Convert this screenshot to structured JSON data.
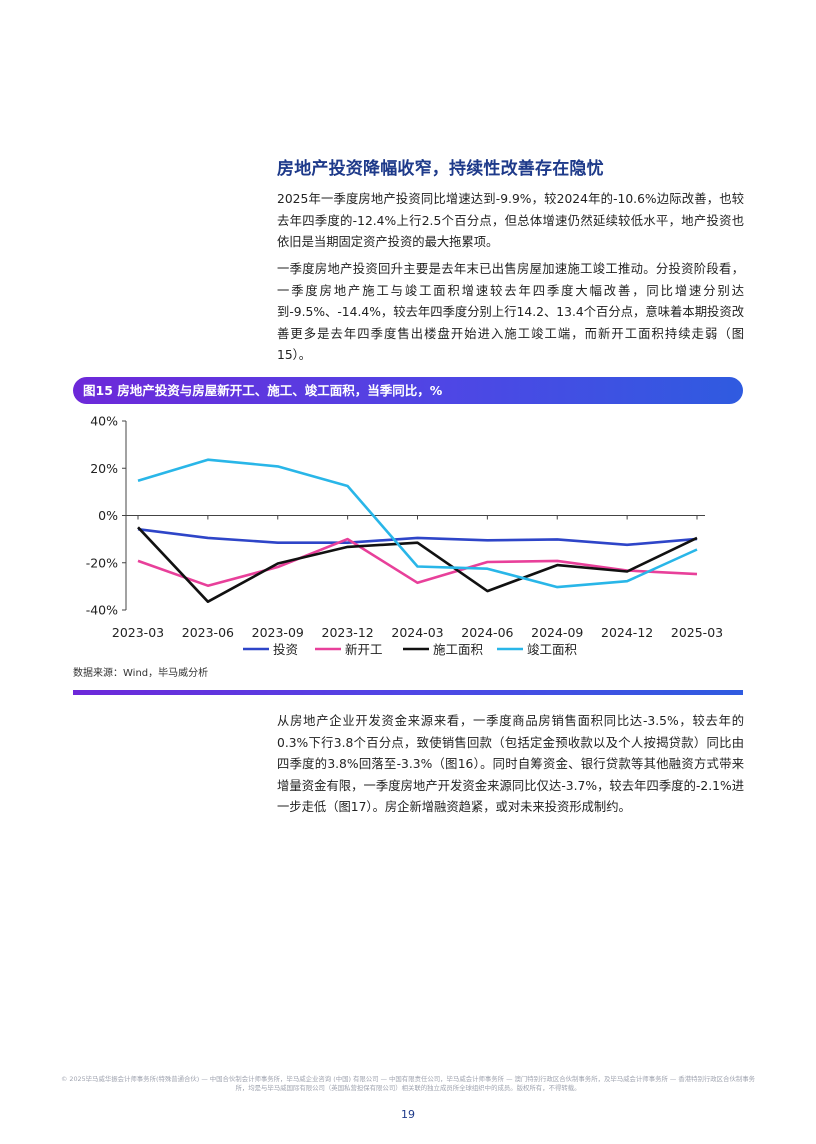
{
  "section": {
    "title": "房地产投资降幅收窄，持续性改善存在隐忧",
    "paragraphs": [
      "2025年一季度房地产投资同比增速达到-9.9%，较2024年的-10.6%边际改善，也较去年四季度的-12.4%上行2.5个百分点，但总体增速仍然延续较低水平，地产投资也依旧是当期固定资产投资的最大拖累项。",
      "一季度房地产投资回升主要是去年末已出售房屋加速施工竣工推动。分投资阶段看，一季度房地产施工与竣工面积增速较去年四季度大幅改善，同比增速分别达到-9.5%、-14.4%，较去年四季度分别上行14.2、13.4个百分点，意味着本期投资改善更多是去年四季度售出楼盘开始进入施工竣工端，而新开工面积持续走弱（图 15）。",
      "从房地产企业开发资金来源来看，一季度商品房销售面积同比达-3.5%，较去年的0.3%下行3.8个百分点，致使销售回款（包括定金预收款以及个人按揭贷款）同比由四季度的3.8%回落至-3.3%（图16）。同时自筹资金、银行贷款等其他融资方式带来增量资金有限，一季度房地产开发资金来源同比仅达-3.7%，较去年四季度的-2.1%进一步走低（图17）。房企新增融资趋紧，或对未来投资形成制约。"
    ]
  },
  "figure": {
    "title": "图15 房地产投资与房屋新开工、施工、竣工面积，当季同比，%",
    "source": "数据来源：Wind，毕马威分析"
  },
  "chart_data": {
    "type": "line",
    "title": "图15 房地产投资与房屋新开工、施工、竣工面积，当季同比，%",
    "xlabel": "",
    "ylabel": "",
    "ylim": [
      -40,
      40
    ],
    "yticks": [
      "40%",
      "20%",
      "0%",
      "-20%",
      "-40%"
    ],
    "ytick_values": [
      40,
      20,
      0,
      -20,
      -40
    ],
    "categories": [
      "2023-03",
      "2023-06",
      "2023-09",
      "2023-12",
      "2024-03",
      "2024-06",
      "2024-09",
      "2024-12",
      "2025-03"
    ],
    "grid": false,
    "legend_position": "bottom",
    "series": [
      {
        "name": "投资",
        "color": "#2e45c8",
        "values": [
          -5.8,
          -9.5,
          -11.5,
          -11.5,
          -9.5,
          -10.5,
          -10.1,
          -12.4,
          -9.9
        ]
      },
      {
        "name": "新开工",
        "color": "#e8409a",
        "values": [
          -19.2,
          -29.7,
          -21.8,
          -10.0,
          -28.5,
          -19.7,
          -19.2,
          -23.3,
          -24.8
        ]
      },
      {
        "name": "施工面积",
        "color": "#111111",
        "values": [
          -5.0,
          -36.5,
          -20.3,
          -13.3,
          -11.5,
          -32.0,
          -21.0,
          -23.7,
          -9.5
        ]
      },
      {
        "name": "竣工面积",
        "color": "#29b6e8",
        "values": [
          14.7,
          23.6,
          20.8,
          12.5,
          -21.6,
          -22.5,
          -30.3,
          -27.8,
          -14.4
        ]
      }
    ]
  },
  "footer": {
    "legal": "© 2025毕马威华振会计师事务所(特殊普通合伙) — 中国合伙制会计师事务所，毕马威企业咨询 (中国) 有限公司 — 中国有限责任公司，毕马威会计师事务所 — 澳门特别行政区合伙制事务所，及毕马威会计师事务所 — 香港特别行政区合伙制事务所，均是与毕马威国际有限公司（英国私营担保有限公司）相关联的独立成员所全球组织中的成员。版权所有，不得转载。",
    "page_number": "19"
  }
}
